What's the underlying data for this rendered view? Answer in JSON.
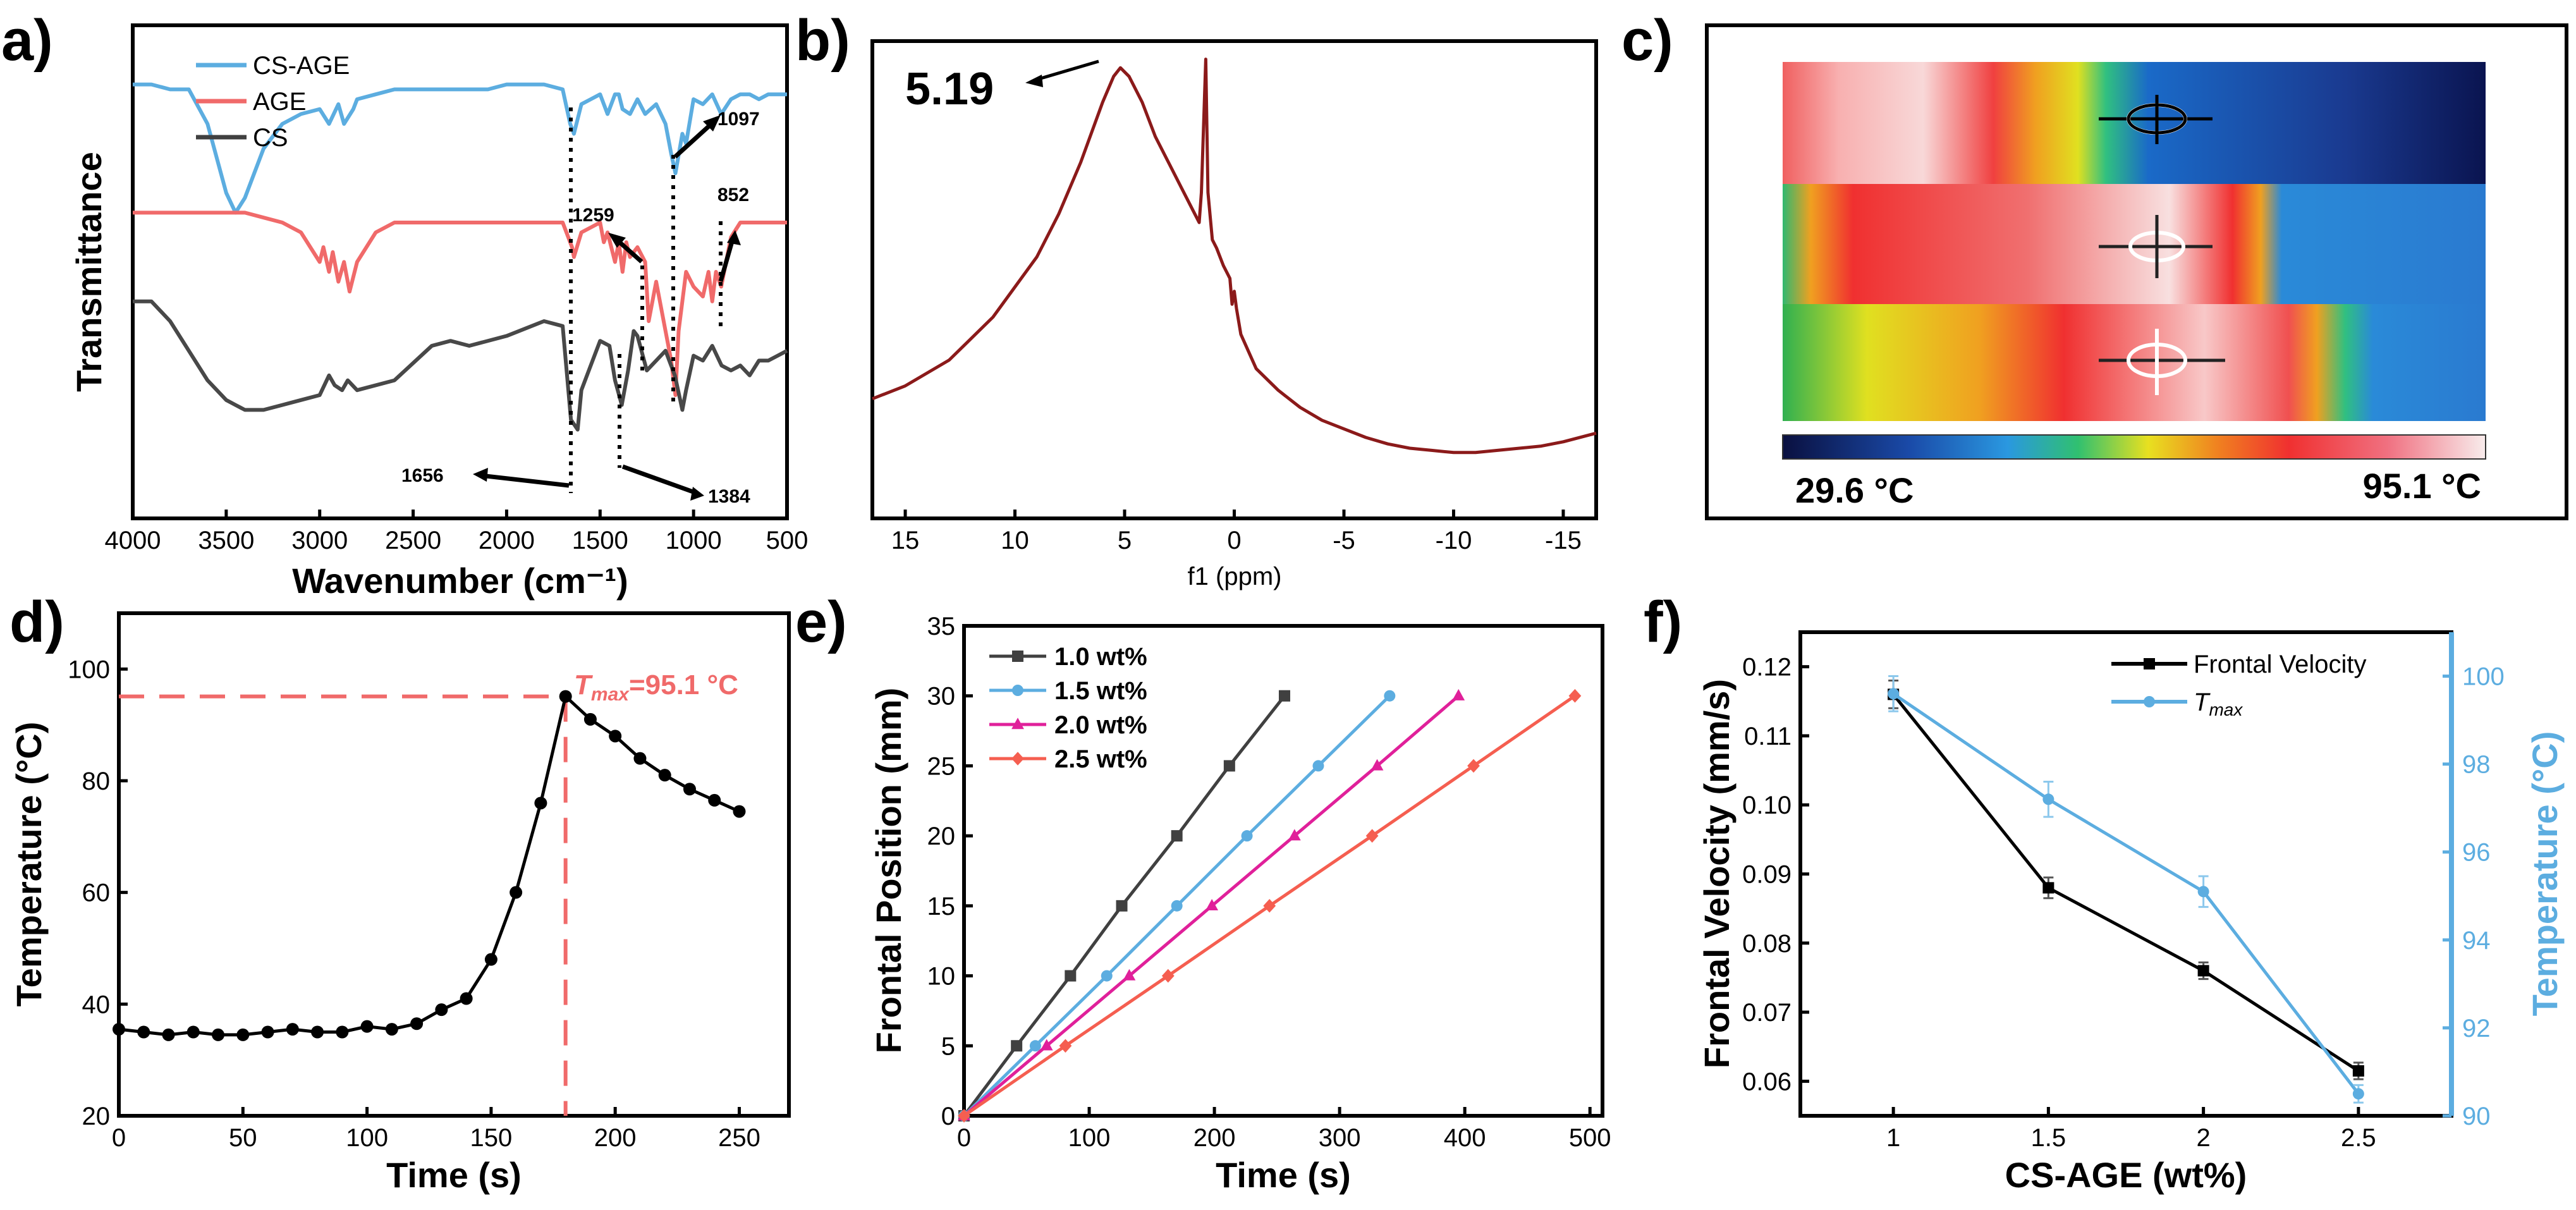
{
  "panels": [
    {
      "id": "a",
      "label": "a)"
    },
    {
      "id": "b",
      "label": "b)"
    },
    {
      "id": "c",
      "label": "c)"
    },
    {
      "id": "d",
      "label": "d)"
    },
    {
      "id": "e",
      "label": "e)"
    },
    {
      "id": "f",
      "label": "f)"
    }
  ],
  "colors": {
    "blue": "#5cade0",
    "red": "#f06a6a",
    "dark": "#404040",
    "ftir_cs": "#484848",
    "nmr": "#8b1a1a",
    "pink": "#e0209a",
    "orange": "#f55e50"
  },
  "thermal": {
    "min_label": "29.6 °C",
    "max_label": "95.1 °C",
    "min_c": 29.6,
    "max_c": 95.1
  },
  "chart_data": [
    {
      "panel": "a",
      "type": "line",
      "xlabel": "Wavenumber (cm⁻¹)",
      "ylabel": "Transmittance",
      "xlim": [
        4000,
        500
      ],
      "xticks": [
        4000,
        3500,
        3000,
        2500,
        2000,
        1500,
        1000,
        500
      ],
      "legend": [
        "CS-AGE",
        "AGE",
        "CS"
      ],
      "series": [
        {
          "name": "CS-AGE",
          "color": "#5cade0",
          "x": [
            4000,
            3900,
            3800,
            3700,
            3600,
            3500,
            3450,
            3400,
            3300,
            3200,
            3100,
            3000,
            2950,
            2900,
            2870,
            2820,
            2800,
            2700,
            2600,
            2500,
            2400,
            2300,
            2200,
            2100,
            2000,
            1900,
            1800,
            1700,
            1660,
            1640,
            1600,
            1550,
            1500,
            1460,
            1420,
            1400,
            1380,
            1340,
            1300,
            1259,
            1200,
            1150,
            1120,
            1097,
            1060,
            1040,
            1000,
            950,
            900,
            852,
            800,
            750,
            700,
            650,
            600,
            550,
            500
          ],
          "y": [
            88,
            88,
            87,
            87,
            80,
            66,
            62,
            65,
            75,
            80,
            82,
            83,
            80,
            84,
            80,
            83,
            85,
            86,
            87,
            87,
            87,
            87,
            87,
            87,
            88,
            88,
            88,
            87,
            80,
            78,
            84,
            85,
            86,
            82,
            86,
            86,
            83,
            82,
            85,
            82,
            84,
            80,
            74,
            70,
            78,
            76,
            85,
            84,
            86,
            82,
            85,
            86,
            86,
            85,
            86,
            86,
            86
          ]
        },
        {
          "name": "AGE",
          "color": "#f06a6a",
          "x": [
            4000,
            3800,
            3600,
            3400,
            3300,
            3200,
            3100,
            3050,
            3000,
            2980,
            2950,
            2930,
            2900,
            2870,
            2840,
            2800,
            2700,
            2600,
            2400,
            2200,
            2000,
            1800,
            1700,
            1650,
            1640,
            1600,
            1500,
            1480,
            1460,
            1420,
            1400,
            1380,
            1360,
            1340,
            1300,
            1259,
            1240,
            1200,
            1150,
            1120,
            1097,
            1080,
            1040,
            1000,
            950,
            920,
            900,
            880,
            852,
            800,
            750,
            700,
            650,
            600,
            550,
            500
          ],
          "y": [
            62,
            62,
            62,
            62,
            61,
            60,
            58,
            55,
            52,
            55,
            50,
            54,
            48,
            52,
            46,
            52,
            58,
            60,
            60,
            60,
            60,
            60,
            60,
            55,
            53,
            58,
            60,
            56,
            58,
            52,
            56,
            50,
            56,
            53,
            55,
            52,
            40,
            48,
            38,
            32,
            25,
            38,
            50,
            47,
            45,
            50,
            44,
            50,
            47,
            57,
            60,
            60,
            60,
            60,
            60,
            60
          ]
        },
        {
          "name": "CS",
          "color": "#484848",
          "x": [
            4000,
            3900,
            3800,
            3700,
            3600,
            3500,
            3450,
            3400,
            3300,
            3200,
            3100,
            3000,
            2950,
            2920,
            2880,
            2850,
            2800,
            2600,
            2400,
            2300,
            2200,
            2000,
            1800,
            1700,
            1656,
            1620,
            1600,
            1560,
            1500,
            1450,
            1420,
            1384,
            1350,
            1320,
            1300,
            1250,
            1200,
            1150,
            1100,
            1060,
            1040,
            1000,
            950,
            900,
            850,
            800,
            750,
            700,
            650,
            600,
            550,
            500
          ],
          "y": [
            44,
            44,
            40,
            34,
            28,
            24,
            23,
            22,
            22,
            23,
            24,
            25,
            29,
            27,
            26,
            28,
            26,
            28,
            35,
            36,
            35,
            37,
            40,
            39,
            20,
            18,
            26,
            30,
            36,
            35,
            28,
            23,
            30,
            38,
            37,
            30,
            32,
            34,
            29,
            22,
            26,
            33,
            32,
            35,
            31,
            30,
            31,
            29,
            32,
            32,
            33,
            34
          ]
        }
      ],
      "annotations": [
        "1097",
        "1259",
        "852",
        "1656",
        "1384"
      ]
    },
    {
      "panel": "b",
      "type": "line",
      "xlabel": "f1 (ppm)",
      "xlim": [
        16.5,
        -16.5
      ],
      "xticks": [
        15,
        10,
        5,
        0,
        -5,
        -10,
        -15
      ],
      "ylim": [
        0,
        100
      ],
      "annotations": [
        "5.19"
      ],
      "series": [
        {
          "name": "NMR",
          "color": "#8b1a1a",
          "x": [
            16.5,
            15,
            13,
            11,
            9,
            8,
            7,
            6,
            5.5,
            5.19,
            4.8,
            4.2,
            3.6,
            3,
            2.4,
            2,
            1.6,
            1.5,
            1.3,
            1.2,
            1.0,
            0.8,
            0.5,
            0.2,
            0.1,
            0.0,
            -0.1,
            -0.3,
            -1,
            -2,
            -3,
            -4,
            -5,
            -6,
            -7,
            -8,
            -9,
            -10,
            -11,
            -12,
            -13,
            -14,
            -15,
            -16.5
          ],
          "y": [
            19,
            22,
            28,
            38,
            52,
            62,
            74,
            88,
            94,
            96,
            94,
            88,
            80,
            74,
            68,
            64,
            60,
            67,
            98,
            67,
            56,
            54,
            50,
            47,
            41,
            44,
            40,
            34,
            26,
            21,
            17,
            14,
            12,
            10,
            8.5,
            7.5,
            7,
            6.5,
            6.5,
            7,
            7.5,
            8,
            9,
            11
          ]
        }
      ]
    },
    {
      "panel": "d",
      "type": "line",
      "xlabel": "Time (s)",
      "ylabel": "Temperature (°C)",
      "xlim": [
        0,
        270
      ],
      "ylim": [
        20,
        110
      ],
      "xticks": [
        0,
        50,
        100,
        150,
        200,
        250
      ],
      "yticks": [
        20,
        40,
        60,
        80,
        100
      ],
      "annotation": "Tmax=95.1 °C",
      "annot_base": "T",
      "annot_sub": "max",
      "annot_rest": "=95.1 °C",
      "tmax_time": 180,
      "tmax_value": 95.1,
      "series": [
        {
          "name": "Temperature",
          "color": "#000000",
          "x": [
            0,
            10,
            20,
            30,
            40,
            50,
            60,
            70,
            80,
            90,
            100,
            110,
            120,
            130,
            140,
            150,
            160,
            170,
            180,
            190,
            200,
            210,
            220,
            230,
            240,
            250
          ],
          "y": [
            35.5,
            35,
            34.5,
            35,
            34.5,
            34.5,
            35,
            35.5,
            35,
            35,
            36,
            35.5,
            36.5,
            39,
            41,
            48,
            60,
            76,
            95.1,
            91,
            88,
            84,
            81,
            78.5,
            76.5,
            74.5
          ]
        }
      ]
    },
    {
      "panel": "e",
      "type": "line",
      "xlabel": "Time (s)",
      "ylabel": "Frontal Position (mm)",
      "xlim": [
        0,
        510
      ],
      "ylim": [
        0,
        35
      ],
      "xticks": [
        0,
        100,
        200,
        300,
        400,
        500
      ],
      "yticks": [
        0,
        5,
        10,
        15,
        20,
        25,
        30,
        35
      ],
      "series": [
        {
          "name": "1.0 wt%",
          "color": "#404040",
          "marker": "square",
          "x": [
            0,
            42,
            85,
            126,
            170,
            212,
            256
          ],
          "y": [
            0,
            5,
            10,
            15,
            20,
            25,
            30
          ]
        },
        {
          "name": "1.5 wt%",
          "color": "#5cade0",
          "marker": "circle",
          "x": [
            0,
            57,
            114,
            170,
            226,
            283,
            340
          ],
          "y": [
            0,
            5,
            10,
            15,
            20,
            25,
            30
          ]
        },
        {
          "name": "2.0 wt%",
          "color": "#e0209a",
          "marker": "triangle",
          "x": [
            0,
            66,
            132,
            198,
            264,
            330,
            395
          ],
          "y": [
            0,
            5,
            10,
            15,
            20,
            25,
            30
          ]
        },
        {
          "name": "2.5 wt%",
          "color": "#f55e50",
          "marker": "diamond",
          "x": [
            0,
            81,
            163,
            244,
            326,
            407,
            488
          ],
          "y": [
            0,
            5,
            10,
            15,
            20,
            25,
            30
          ]
        }
      ]
    },
    {
      "panel": "f",
      "type": "line",
      "xlabel": "CS-AGE (wt%)",
      "ylabel": "Frontal Velocity (mm/s)",
      "y2label": "Temperature (°C)",
      "xlim": [
        0.7,
        2.8
      ],
      "ylim": [
        0.055,
        0.125
      ],
      "y2lim": [
        90,
        101
      ],
      "xticks": [
        1,
        1.5,
        2,
        2.5
      ],
      "xtick_labels": [
        "1",
        "1.5",
        "2",
        "2.5"
      ],
      "yticks": [
        0.06,
        0.07,
        0.08,
        0.09,
        0.1,
        0.11,
        0.12
      ],
      "ytick_labels": [
        "0.06",
        "0.07",
        "0.08",
        "0.09",
        "0.10",
        "0.11",
        "0.12"
      ],
      "y2ticks": [
        90,
        92,
        94,
        96,
        98,
        100
      ],
      "series": [
        {
          "name": "Frontal Velocity",
          "axis": "left",
          "color": "#000000",
          "marker": "square",
          "x": [
            1,
            1.5,
            2,
            2.5
          ],
          "y": [
            0.116,
            0.088,
            0.076,
            0.0615
          ],
          "err": [
            0.002,
            0.0015,
            0.0012,
            0.0012
          ]
        },
        {
          "name": "T",
          "name_sub": "max",
          "axis": "right",
          "color": "#5cade0",
          "marker": "circle",
          "x": [
            1,
            1.5,
            2,
            2.5
          ],
          "y": [
            99.6,
            97.2,
            95.1,
            90.5
          ],
          "err": [
            0.4,
            0.4,
            0.35,
            0.2
          ]
        }
      ]
    }
  ]
}
